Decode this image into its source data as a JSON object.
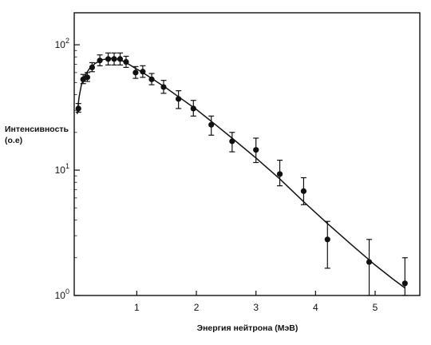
{
  "chart_data": {
    "type": "scatter",
    "xlabel": "Энергия нейтрона (МэВ)",
    "ylabel_line1": "Интенсивность",
    "ylabel_line2": "(о.е)",
    "x_scale": "linear",
    "y_scale": "log",
    "xlim": [
      -0.05,
      5.75
    ],
    "ylim": [
      1,
      180
    ],
    "x_ticks": [
      1,
      2,
      3,
      4,
      5
    ],
    "y_ticks": [
      {
        "value": 1,
        "base": "10",
        "exp": "0"
      },
      {
        "value": 10,
        "base": "10",
        "exp": "1"
      },
      {
        "value": 100,
        "base": "10",
        "exp": "2"
      }
    ],
    "grid": false,
    "legend": "none",
    "colors": {
      "marks": "#111111",
      "background": "#ffffff"
    },
    "series": [
      {
        "kind": "points_with_error_bars",
        "points": [
          {
            "x": 0.02,
            "y": 31,
            "ylo": 29,
            "yhi": 34
          },
          {
            "x": 0.1,
            "y": 53,
            "ylo": 49,
            "yhi": 58
          },
          {
            "x": 0.17,
            "y": 55,
            "ylo": 51,
            "yhi": 60
          },
          {
            "x": 0.25,
            "y": 66,
            "ylo": 61,
            "yhi": 72
          },
          {
            "x": 0.38,
            "y": 75,
            "ylo": 68,
            "yhi": 83
          },
          {
            "x": 0.52,
            "y": 77,
            "ylo": 69,
            "yhi": 86
          },
          {
            "x": 0.62,
            "y": 77,
            "ylo": 69,
            "yhi": 86
          },
          {
            "x": 0.72,
            "y": 77,
            "ylo": 69,
            "yhi": 86
          },
          {
            "x": 0.82,
            "y": 73,
            "ylo": 66,
            "yhi": 81
          },
          {
            "x": 0.98,
            "y": 60,
            "ylo": 54,
            "yhi": 67
          },
          {
            "x": 1.1,
            "y": 61,
            "ylo": 55,
            "yhi": 68
          },
          {
            "x": 1.25,
            "y": 53,
            "ylo": 48,
            "yhi": 59
          },
          {
            "x": 1.45,
            "y": 46,
            "ylo": 41,
            "yhi": 52
          },
          {
            "x": 1.7,
            "y": 37,
            "ylo": 31,
            "yhi": 43
          },
          {
            "x": 1.95,
            "y": 31,
            "ylo": 27,
            "yhi": 36
          },
          {
            "x": 2.25,
            "y": 23,
            "ylo": 19,
            "yhi": 27
          },
          {
            "x": 2.6,
            "y": 17,
            "ylo": 14,
            "yhi": 20
          },
          {
            "x": 3.0,
            "y": 14.5,
            "ylo": 11.5,
            "yhi": 18
          },
          {
            "x": 3.4,
            "y": 9.3,
            "ylo": 7.5,
            "yhi": 12
          },
          {
            "x": 3.8,
            "y": 6.8,
            "ylo": 5.3,
            "yhi": 8.7
          },
          {
            "x": 4.2,
            "y": 2.8,
            "ylo": 1.65,
            "yhi": 3.9
          },
          {
            "x": 4.9,
            "y": 1.85,
            "ylo": 1.0,
            "yhi": 2.8
          },
          {
            "x": 5.5,
            "y": 1.25,
            "ylo": 1.0,
            "yhi": 2.0
          }
        ]
      },
      {
        "kind": "fit_curve",
        "points": [
          {
            "x": 0.0,
            "y": 28
          },
          {
            "x": 0.03,
            "y": 38
          },
          {
            "x": 0.07,
            "y": 48
          },
          {
            "x": 0.12,
            "y": 56
          },
          {
            "x": 0.2,
            "y": 64
          },
          {
            "x": 0.3,
            "y": 71
          },
          {
            "x": 0.42,
            "y": 76
          },
          {
            "x": 0.55,
            "y": 78
          },
          {
            "x": 0.68,
            "y": 77
          },
          {
            "x": 0.8,
            "y": 73
          },
          {
            "x": 0.95,
            "y": 66
          },
          {
            "x": 1.1,
            "y": 60
          },
          {
            "x": 1.3,
            "y": 52
          },
          {
            "x": 1.5,
            "y": 45
          },
          {
            "x": 1.75,
            "y": 37
          },
          {
            "x": 2.0,
            "y": 30.5
          },
          {
            "x": 2.3,
            "y": 23.5
          },
          {
            "x": 2.6,
            "y": 18
          },
          {
            "x": 3.0,
            "y": 12.5
          },
          {
            "x": 3.4,
            "y": 8.5
          },
          {
            "x": 3.8,
            "y": 5.6
          },
          {
            "x": 4.2,
            "y": 3.75
          },
          {
            "x": 4.6,
            "y": 2.55
          },
          {
            "x": 5.0,
            "y": 1.75
          },
          {
            "x": 5.3,
            "y": 1.35
          },
          {
            "x": 5.5,
            "y": 1.15
          }
        ]
      }
    ]
  }
}
